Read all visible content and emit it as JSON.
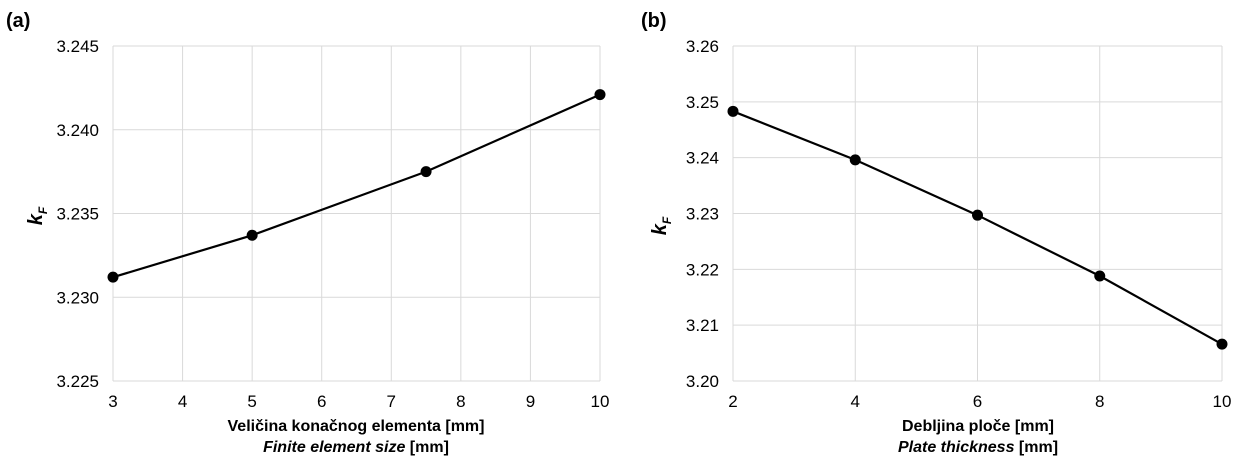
{
  "chart_data": [
    {
      "type": "line",
      "panel_label": "(a)",
      "x": [
        3,
        5,
        7.5,
        10
      ],
      "series": [
        {
          "values": [
            3.2312,
            3.2337,
            3.2375,
            3.2421
          ]
        }
      ],
      "xlim": [
        3,
        10
      ],
      "ylim": [
        3.225,
        3.245
      ],
      "xticks": [
        "3",
        "4",
        "5",
        "6",
        "7",
        "8",
        "9",
        "10"
      ],
      "yticks": [
        "3.225",
        "3.230",
        "3.235",
        "3.240",
        "3.245"
      ],
      "xlabel_line1": "Veličina konačnog elementa [mm]",
      "xlabel_line2_italic": "Finite element size",
      "xlabel_line2_unit": " [mm]",
      "ylabel_main": "k",
      "ylabel_sub": "F",
      "grid": true,
      "line_color": "#000000",
      "grid_color": "#d9d9d9"
    },
    {
      "type": "line",
      "panel_label": "(b)",
      "x": [
        2,
        4,
        6,
        8,
        10
      ],
      "series": [
        {
          "values": [
            3.2483,
            3.2396,
            3.2297,
            3.2188,
            3.2066
          ]
        }
      ],
      "xlim": [
        2,
        10
      ],
      "ylim": [
        3.2,
        3.26
      ],
      "xticks": [
        "2",
        "4",
        "6",
        "8",
        "10"
      ],
      "yticks": [
        "3.20",
        "3.21",
        "3.22",
        "3.23",
        "3.24",
        "3.25",
        "3.26"
      ],
      "xlabel_line1": "Debljina ploče [mm]",
      "xlabel_line2_italic": "Plate thickness",
      "xlabel_line2_unit": " [mm]",
      "ylabel_main": "k",
      "ylabel_sub": "F",
      "grid": true,
      "line_color": "#000000",
      "grid_color": "#d9d9d9"
    }
  ]
}
